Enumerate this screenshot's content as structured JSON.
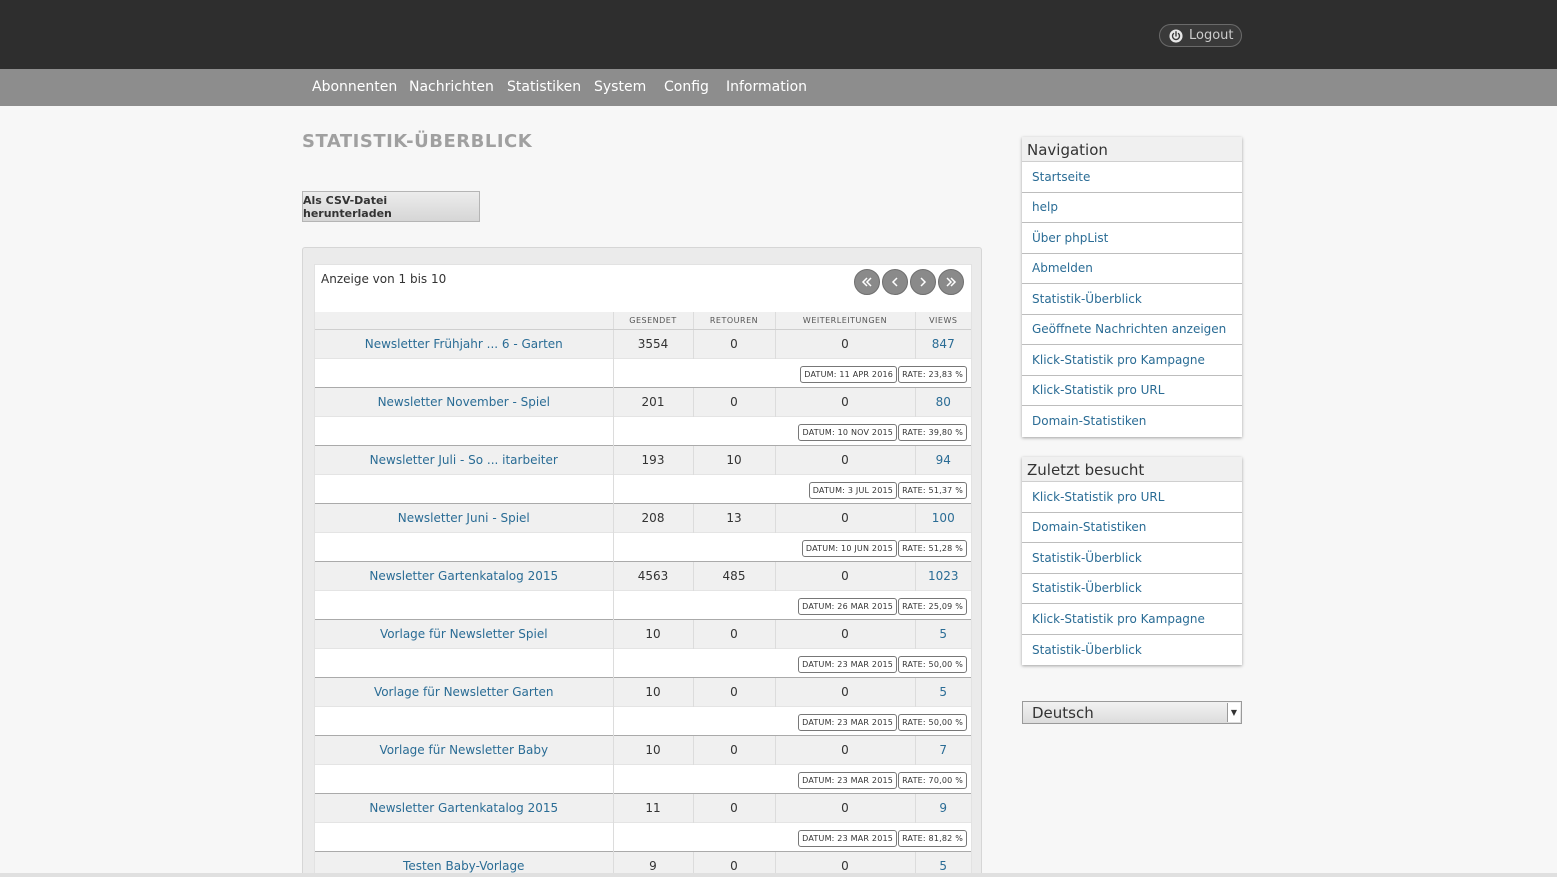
{
  "header": {
    "logout_label": "Logout"
  },
  "menu": [
    "Abonnenten",
    "Nachrichten",
    "Statistiken",
    "System",
    "Config",
    "Information"
  ],
  "page_title": "STATISTIK-ÜBERBLICK",
  "csv_button": "Als CSV-Datei herunterladen",
  "listing": {
    "showing": "Anzeige von 1 bis 10",
    "columns": [
      "",
      "GESENDET",
      "RETOUREN",
      "WEITERLEITUNGEN",
      "VIEWS"
    ],
    "rows": [
      {
        "name": "Newsletter Frühjahr ... 6 - Garten",
        "sent": "3554",
        "bounces": "0",
        "forwards": "0",
        "views": "847",
        "date": "DATUM: 11 APR 2016",
        "rate": "RATE: 23,83 %"
      },
      {
        "name": "Newsletter November - Spiel",
        "sent": "201",
        "bounces": "0",
        "forwards": "0",
        "views": "80",
        "date": "DATUM: 10 NOV 2015",
        "rate": "RATE: 39,80 %"
      },
      {
        "name": "Newsletter Juli - So ... itarbeiter",
        "sent": "193",
        "bounces": "10",
        "forwards": "0",
        "views": "94",
        "date": "DATUM: 3 JUL 2015",
        "rate": "RATE: 51,37 %"
      },
      {
        "name": "Newsletter Juni - Spiel",
        "sent": "208",
        "bounces": "13",
        "forwards": "0",
        "views": "100",
        "date": "DATUM: 10 JUN 2015",
        "rate": "RATE: 51,28 %"
      },
      {
        "name": "Newsletter Gartenkatalog 2015",
        "sent": "4563",
        "bounces": "485",
        "forwards": "0",
        "views": "1023",
        "date": "DATUM: 26 MAR 2015",
        "rate": "RATE: 25,09 %"
      },
      {
        "name": "Vorlage für Newsletter Spiel",
        "sent": "10",
        "bounces": "0",
        "forwards": "0",
        "views": "5",
        "date": "DATUM: 23 MAR 2015",
        "rate": "RATE: 50,00 %"
      },
      {
        "name": "Vorlage für Newsletter Garten",
        "sent": "10",
        "bounces": "0",
        "forwards": "0",
        "views": "5",
        "date": "DATUM: 23 MAR 2015",
        "rate": "RATE: 50,00 %"
      },
      {
        "name": "Vorlage für Newsletter Baby",
        "sent": "10",
        "bounces": "0",
        "forwards": "0",
        "views": "7",
        "date": "DATUM: 23 MAR 2015",
        "rate": "RATE: 70,00 %"
      },
      {
        "name": "Newsletter Gartenkatalog 2015",
        "sent": "11",
        "bounces": "0",
        "forwards": "0",
        "views": "9",
        "date": "DATUM: 23 MAR 2015",
        "rate": "RATE: 81,82 %"
      },
      {
        "name": "Testen Baby-Vorlage",
        "sent": "9",
        "bounces": "0",
        "forwards": "0",
        "views": "5",
        "date": "",
        "rate": ""
      }
    ]
  },
  "navigation": {
    "title": "Navigation",
    "items": [
      "Startseite",
      "help",
      "Über phpList",
      "Abmelden",
      "Statistik-Überblick",
      "Geöffnete Nachrichten anzeigen",
      "Klick-Statistik pro Kampagne",
      "Klick-Statistik pro URL",
      "Domain-Statistiken"
    ]
  },
  "recent": {
    "title": "Zuletzt besucht",
    "items": [
      "Klick-Statistik pro URL",
      "Domain-Statistiken",
      "Statistik-Überblick",
      "Statistik-Überblick",
      "Klick-Statistik pro Kampagne",
      "Statistik-Überblick"
    ]
  },
  "language": {
    "selected": "Deutsch"
  },
  "icons": {
    "logout": "power-icon",
    "pager": [
      "double-left-icon",
      "left-icon",
      "right-icon",
      "double-right-icon"
    ]
  }
}
